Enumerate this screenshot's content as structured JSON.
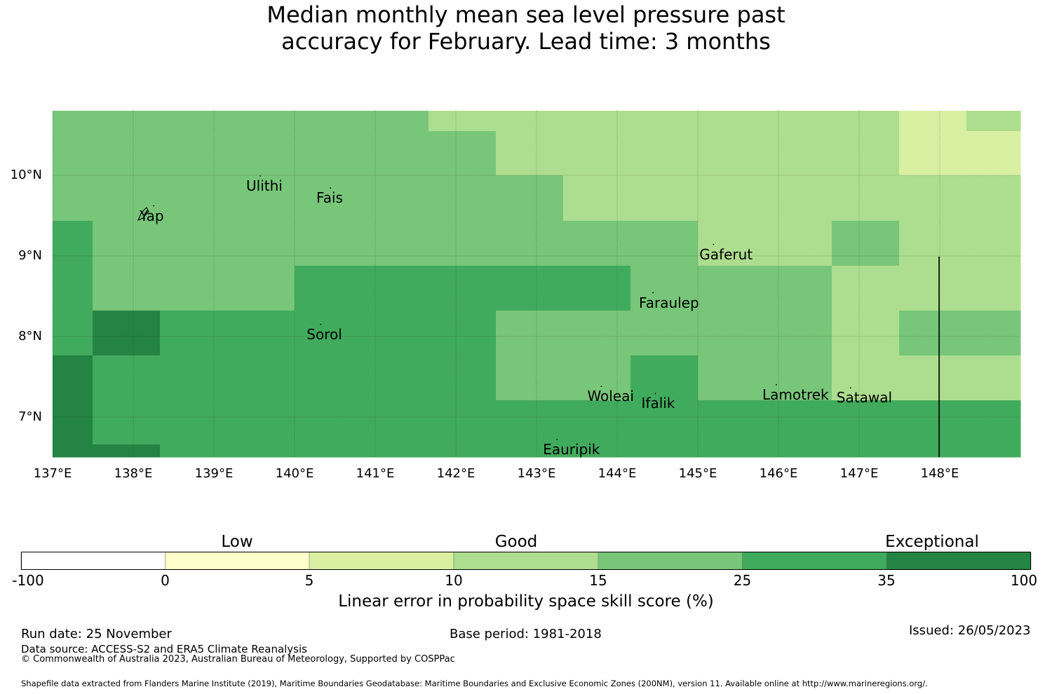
{
  "title_line1": "Median monthly mean sea level pressure past",
  "title_line2": "accuracy for February. Lead time: 3 months",
  "colors": {
    "c0": "#ffffff",
    "c1": "#ffffcc",
    "c2": "#d9f0a3",
    "c3": "#addd8e",
    "c4": "#78c679",
    "c5": "#41ab5d",
    "c6": "#238443"
  },
  "map": {
    "lon_range": [
      137.0,
      149.0
    ],
    "lat_range": [
      6.5,
      10.8
    ],
    "lat_ticks": [
      {
        "value": 10,
        "label": "10°N"
      },
      {
        "value": 9,
        "label": "9°N"
      },
      {
        "value": 8,
        "label": "8°N"
      },
      {
        "value": 7,
        "label": "7°N"
      }
    ],
    "lon_ticks": [
      {
        "value": 137,
        "label": "137°E"
      },
      {
        "value": 138,
        "label": "138°E"
      },
      {
        "value": 139,
        "label": "139°E"
      },
      {
        "value": 140,
        "label": "140°E"
      },
      {
        "value": 141,
        "label": "141°E"
      },
      {
        "value": 142,
        "label": "142°E"
      },
      {
        "value": 143,
        "label": "143°E"
      },
      {
        "value": 144,
        "label": "144°E"
      },
      {
        "value": 145,
        "label": "145°E"
      },
      {
        "value": 146,
        "label": "146°E"
      },
      {
        "value": 147,
        "label": "147°E"
      },
      {
        "value": 148,
        "label": "148°E"
      }
    ],
    "places": [
      {
        "name": "Ulithi",
        "lon": 139.4,
        "lat": 9.87
      },
      {
        "name": "Fais",
        "lon": 140.27,
        "lat": 9.72
      },
      {
        "name": "Yap",
        "lon": 138.08,
        "lat": 9.5
      },
      {
        "name": "Gaferut",
        "lon": 145.02,
        "lat": 9.02
      },
      {
        "name": "Faraulep",
        "lon": 144.27,
        "lat": 8.42
      },
      {
        "name": "Sorol",
        "lon": 140.15,
        "lat": 8.03
      },
      {
        "name": "Woleai",
        "lon": 143.63,
        "lat": 7.26
      },
      {
        "name": "Ifalik",
        "lon": 144.3,
        "lat": 7.17
      },
      {
        "name": "Lamotrek",
        "lon": 145.8,
        "lat": 7.28
      },
      {
        "name": "Satawal",
        "lon": 146.72,
        "lat": 7.24
      },
      {
        "name": "Eauripik",
        "lon": 143.08,
        "lat": 6.6
      }
    ]
  },
  "colorbar": {
    "categories": [
      "Low",
      "Good",
      "Exceptional"
    ],
    "ticks": [
      "-100",
      "0",
      "5",
      "10",
      "15",
      "25",
      "35",
      "100"
    ],
    "label": "Linear error in probability space skill score (%)"
  },
  "footer": {
    "run_date": "Run date: 25 November",
    "base_period": "Base period: 1981-2018",
    "issued": "Issued: 26/05/2023",
    "data_source": "Data source: ACCESS-S2 and ERA5 Climate Reanalysis",
    "copyright": "© Commonwealth of Australia 2023, Australian Bureau of Meteorology, Supported by COSPPac",
    "shapefile": "Shapefile data extracted from Flanders Marine Institute (2019), Maritime Boundaries Geodatabase: Maritime Boundaries and Exclusive Economic Zones (200NM), version 11. Available online at http://www.marineregions.org/."
  }
}
